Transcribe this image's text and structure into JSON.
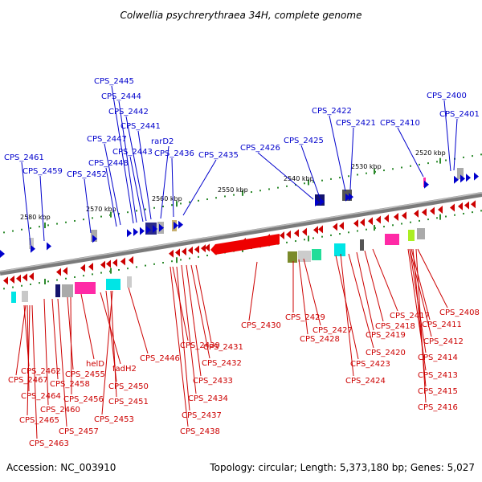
{
  "title": "Colwellia psychrerythraea 34H, complete genome",
  "footer": {
    "accession": "Accession: NC_003910",
    "summary": "Topology: circular; Length: 5,373,180 bp; Genes: 5,027"
  },
  "kbp_labels": [
    "2580 kbp",
    "2570 kbp",
    "2560 kbp",
    "2550 kbp",
    "2540 kbp",
    "2530 kbp",
    "2520 kbp"
  ],
  "forward_genes": [
    "CPS_2461",
    "CPS_2459",
    "CPS_2452",
    "CPS_2448",
    "CPS_2447",
    "CPS_2445",
    "CPS_2444",
    "CPS_2443",
    "CPS_2442",
    "CPS_2441",
    "rarD2",
    "CPS_2436",
    "CPS_2435",
    "CPS_2426",
    "CPS_2425",
    "CPS_2422",
    "CPS_2421",
    "CPS_2410",
    "CPS_2401",
    "CPS_2400"
  ],
  "reverse_genes": [
    "CPS_2462",
    "CPS_2467",
    "CPS_2464",
    "CPS_2465",
    "CPS_2463",
    "CPS_2458",
    "CPS_2460",
    "CPS_2457",
    "CPS_2455",
    "CPS_2456",
    "helD",
    "fadH2",
    "CPS_2450",
    "CPS_2451",
    "CPS_2453",
    "CPS_2446",
    "CPS_2439",
    "CPS_2437",
    "CPS_2434",
    "CPS_2433",
    "CPS_2432",
    "CPS_2431",
    "CPS_2438",
    "CPS_2430",
    "CPS_2429",
    "CPS_2427",
    "CPS_2428",
    "CPS_2423",
    "CPS_2424",
    "CPS_2420",
    "CPS_2419",
    "CPS_2418",
    "CPS_2417",
    "CPS_2416",
    "CPS_2415",
    "CPS_2414",
    "CPS_2413",
    "CPS_2412",
    "CPS_2411",
    "CPS_2408"
  ],
  "colors": {
    "forward": "#0000cc",
    "reverse": "#cc0000",
    "backbone": "#888888",
    "tick_major": "#2e8b2e"
  }
}
